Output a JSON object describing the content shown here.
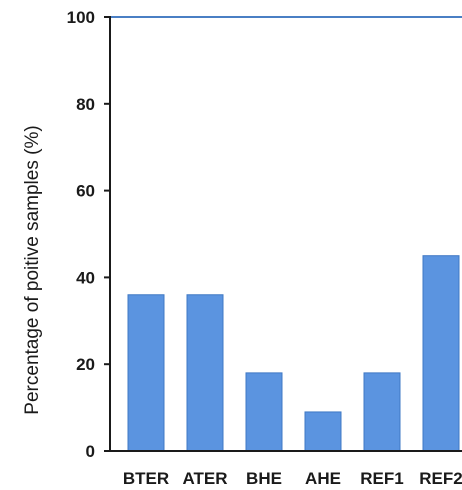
{
  "chart_data": {
    "type": "bar",
    "ylabel": "Percentage of  poitive samples (%)",
    "categories": [
      "BTER",
      "ATER",
      "BHE",
      "AHE",
      "REF1",
      "REF2"
    ],
    "values": [
      36,
      36,
      18,
      9,
      18,
      45
    ],
    "ylim": [
      0,
      100
    ],
    "yticks": [
      0,
      20,
      40,
      60,
      80,
      100
    ],
    "grid": false,
    "legend": "none",
    "bar_color": "#5b94e0",
    "bar_edge_color": "#3f78c4",
    "top_line_color": "#4a7fc4",
    "axis_color": "#1a1a1a"
  }
}
